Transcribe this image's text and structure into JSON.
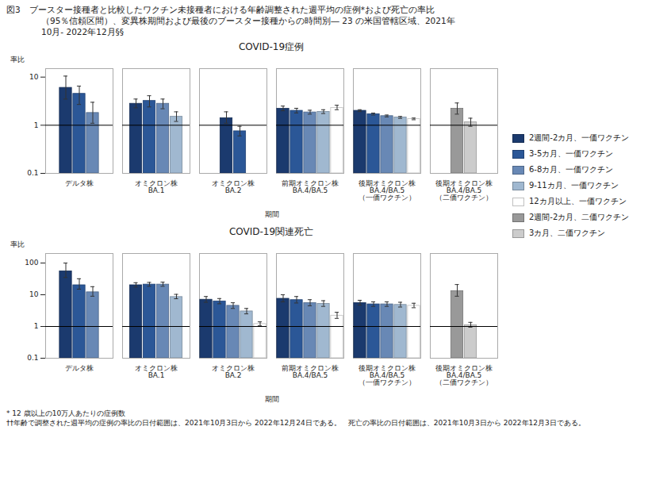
{
  "title": "図3　ブースター接種者と比較したワクチン未接種者における年齢調整された週平均の症例*および死亡の率比",
  "subtitle": "（95％信頼区間）、変異株期間および最後のブースター接種からの時間別― 23 の米国管轄区域、2021年\n10月- 2022年12月§§",
  "annotations": [
    "* 12 歳以上の10万人あたりの症例数",
    "††年齢で調整された週平均の症例の率比の日付範囲は、2021年10月3日から 2022年12月24日である。　死亡の率比の日付範囲は、2021年10月3日から 2022年12月3日である。"
  ],
  "chart_data": [
    {
      "type": "bar",
      "title": "COVID-19症例",
      "xlabel": "期間",
      "ylabel": "率比",
      "categories": [
        "デルタ株",
        "オミクロン株\nBA.1",
        "オミクロン株\nBA.2",
        "前期オミクロン株\nBA.4/BA.5",
        "後期オミクロン株\nBA.4/BA.5\n（一価ワクチン）",
        "後期オミクロン株\nBA.4/BA.5\n（二価ワクチン）"
      ],
      "log": "y",
      "ylim": [
        0.1,
        15
      ],
      "yticks": [
        0.1,
        1,
        10
      ],
      "grid": false,
      "legend": "right",
      "reference_line": 1,
      "series": [
        {
          "name": "2週間-2カ月、一価ワクチン",
          "color": "#1b3a6e",
          "values": [
            6.0,
            2.8,
            1.4,
            2.2,
            2.0,
            null
          ],
          "error_low": [
            2.5,
            0.5,
            0.3,
            0.2,
            0.08,
            null
          ],
          "error_high": [
            4.5,
            0.7,
            0.5,
            0.3,
            0.1,
            null
          ]
        },
        {
          "name": "3-5カ月、一価ワクチン",
          "color": "#2b5797",
          "values": [
            4.5,
            3.2,
            0.75,
            2.0,
            1.7,
            null
          ],
          "error_low": [
            1.8,
            0.8,
            0.15,
            0.2,
            0.07,
            null
          ],
          "error_high": [
            2.0,
            0.9,
            0.2,
            0.25,
            0.09,
            null
          ]
        },
        {
          "name": "6-8カ月、一価ワクチン",
          "color": "#6888b5",
          "values": [
            1.8,
            2.8,
            null,
            1.85,
            1.55,
            null
          ],
          "error_low": [
            0.7,
            0.6,
            null,
            0.15,
            0.06,
            null
          ],
          "error_high": [
            1.2,
            0.7,
            null,
            0.2,
            0.08,
            null
          ]
        },
        {
          "name": "9-11カ月、一価ワクチン",
          "color": "#a0b8d0",
          "values": [
            null,
            1.5,
            null,
            1.9,
            1.45,
            null
          ],
          "error_low": [
            null,
            0.3,
            null,
            0.15,
            0.06,
            null
          ],
          "error_high": [
            null,
            0.4,
            null,
            0.2,
            0.07,
            null
          ]
        },
        {
          "name": "12カ月以上、一価ワクチン",
          "color": "#ffffff",
          "values": [
            null,
            null,
            null,
            2.3,
            1.35,
            null
          ],
          "error_low": [
            null,
            null,
            null,
            0.2,
            0.05,
            null
          ],
          "error_high": [
            null,
            null,
            null,
            0.3,
            0.06,
            null
          ]
        },
        {
          "name": "2週間-2カ月、二価ワクチン",
          "color": "#999999",
          "values": [
            null,
            null,
            null,
            null,
            null,
            2.2
          ],
          "error_low": [
            null,
            null,
            null,
            null,
            null,
            0.5
          ],
          "error_high": [
            null,
            null,
            null,
            null,
            null,
            0.7
          ]
        },
        {
          "name": "3カ月、二価ワクチン",
          "color": "#cccccc",
          "values": [
            null,
            null,
            null,
            null,
            null,
            1.15
          ],
          "error_low": [
            null,
            null,
            null,
            null,
            null,
            0.2
          ],
          "error_high": [
            null,
            null,
            null,
            null,
            null,
            0.25
          ]
        }
      ]
    },
    {
      "type": "bar",
      "title": "COVID-19関連死亡",
      "xlabel": "期間",
      "ylabel": "率比",
      "categories": [
        "デルタ株",
        "オミクロン株\nBA.1",
        "オミクロン株\nBA.2",
        "前期オミクロン株\nBA.4/BA.5",
        "後期オミクロン株\nBA.4/BA.5\n（一価ワクチン）",
        "後期オミクロン株\nBA.4/BA.5\n（二価ワクチン）"
      ],
      "log": "y",
      "ylim": [
        0.1,
        200
      ],
      "yticks": [
        0.1,
        1,
        10,
        100
      ],
      "grid": false,
      "legend": "right",
      "reference_line": 1,
      "series": [
        {
          "name": "2週間-2カ月、一価ワクチン",
          "color": "#1b3a6e",
          "values": [
            55.0,
            20.0,
            7.0,
            7.5,
            5.5,
            null
          ],
          "error_low": [
            20.0,
            2.5,
            1.2,
            1.5,
            0.8,
            null
          ],
          "error_high": [
            45.0,
            4.0,
            1.8,
            2.5,
            1.2,
            null
          ]
        },
        {
          "name": "3-5カ月、一価ワクチン",
          "color": "#2b5797",
          "values": [
            20.0,
            21.0,
            6.2,
            6.8,
            5.0,
            null
          ],
          "error_low": [
            5.0,
            2.5,
            1.0,
            1.3,
            0.7,
            null
          ],
          "error_high": [
            12.0,
            3.5,
            1.4,
            2.0,
            1.0,
            null
          ]
        },
        {
          "name": "6-8カ月、一価ワクチン",
          "color": "#6888b5",
          "values": [
            12.0,
            21.0,
            4.5,
            5.5,
            5.0,
            null
          ],
          "error_low": [
            3.0,
            2.5,
            0.8,
            1.0,
            0.7,
            null
          ],
          "error_high": [
            6.0,
            4.0,
            1.1,
            1.5,
            1.0,
            null
          ]
        },
        {
          "name": "9-11カ月、一価ワクチン",
          "color": "#a0b8d0",
          "values": [
            null,
            8.5,
            3.0,
            5.2,
            4.8,
            null
          ],
          "error_low": [
            null,
            1.0,
            0.5,
            0.9,
            0.7,
            null
          ],
          "error_high": [
            null,
            1.8,
            0.7,
            1.3,
            1.0,
            null
          ]
        },
        {
          "name": "12カ月以上、一価ワクチン",
          "color": "#ffffff",
          "values": [
            null,
            null,
            1.2,
            2.2,
            4.5,
            null
          ],
          "error_low": [
            null,
            null,
            0.15,
            0.4,
            0.6,
            null
          ],
          "error_high": [
            null,
            null,
            0.2,
            0.6,
            0.9,
            null
          ]
        },
        {
          "name": "2週間-2カ月、二価ワクチン",
          "color": "#999999",
          "values": [
            null,
            null,
            null,
            null,
            null,
            13.0
          ],
          "error_low": [
            null,
            null,
            null,
            null,
            null,
            4.0
          ],
          "error_high": [
            null,
            null,
            null,
            null,
            null,
            8.0
          ]
        },
        {
          "name": "3カ月、二価ワクチン",
          "color": "#cccccc",
          "values": [
            null,
            null,
            null,
            null,
            null,
            1.1
          ],
          "error_low": [
            null,
            null,
            null,
            null,
            null,
            0.15
          ],
          "error_high": [
            null,
            null,
            null,
            null,
            null,
            0.25
          ]
        }
      ]
    }
  ]
}
